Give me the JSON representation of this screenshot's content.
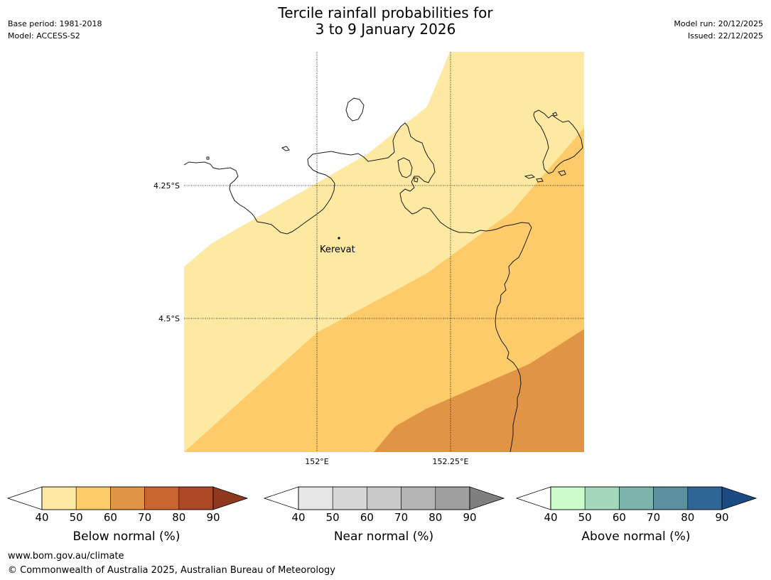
{
  "title": {
    "line1": "Tercile rainfall probabilities for",
    "line2": "3 to 9 January 2026"
  },
  "meta_left": {
    "base_period": "Base period: 1981-2018",
    "model": "Model: ACCESS-S2"
  },
  "meta_right": {
    "model_run": "Model run: 20/12/2025",
    "issued": "Issued: 22/12/2025"
  },
  "map": {
    "lat_labels": [
      "4.25°S",
      "4.5°S"
    ],
    "lon_labels": [
      "152°E",
      "152.25°E"
    ],
    "place": "Kerevat",
    "fill_colors": [
      "#fee9a2",
      "#fdcb69",
      "#e09445"
    ]
  },
  "colorbars": [
    {
      "label": "Below normal (%)",
      "ticks": [
        "40",
        "50",
        "60",
        "70",
        "80",
        "90"
      ],
      "colors": [
        "#fee9a2",
        "#fdcb69",
        "#e09445",
        "#ca6532",
        "#ad4825",
        "#8f3a1f"
      ]
    },
    {
      "label": "Near normal (%)",
      "ticks": [
        "40",
        "50",
        "60",
        "70",
        "80",
        "90"
      ],
      "colors": [
        "#e6e6e6",
        "#d6d6d6",
        "#c8c8c8",
        "#b4b4b4",
        "#9f9f9f",
        "#7f7f7f"
      ]
    },
    {
      "label": "Above normal (%)",
      "ticks": [
        "40",
        "50",
        "60",
        "70",
        "80",
        "90"
      ],
      "colors": [
        "#ccfccc",
        "#a4d8bb",
        "#7cb3ac",
        "#5a8f9e",
        "#306598",
        "#1a4b83"
      ]
    }
  ],
  "footer": {
    "url": "www.bom.gov.au/climate",
    "copyright": "© Commonwealth of Australia 2025, Australian Bureau of Meteorology"
  }
}
